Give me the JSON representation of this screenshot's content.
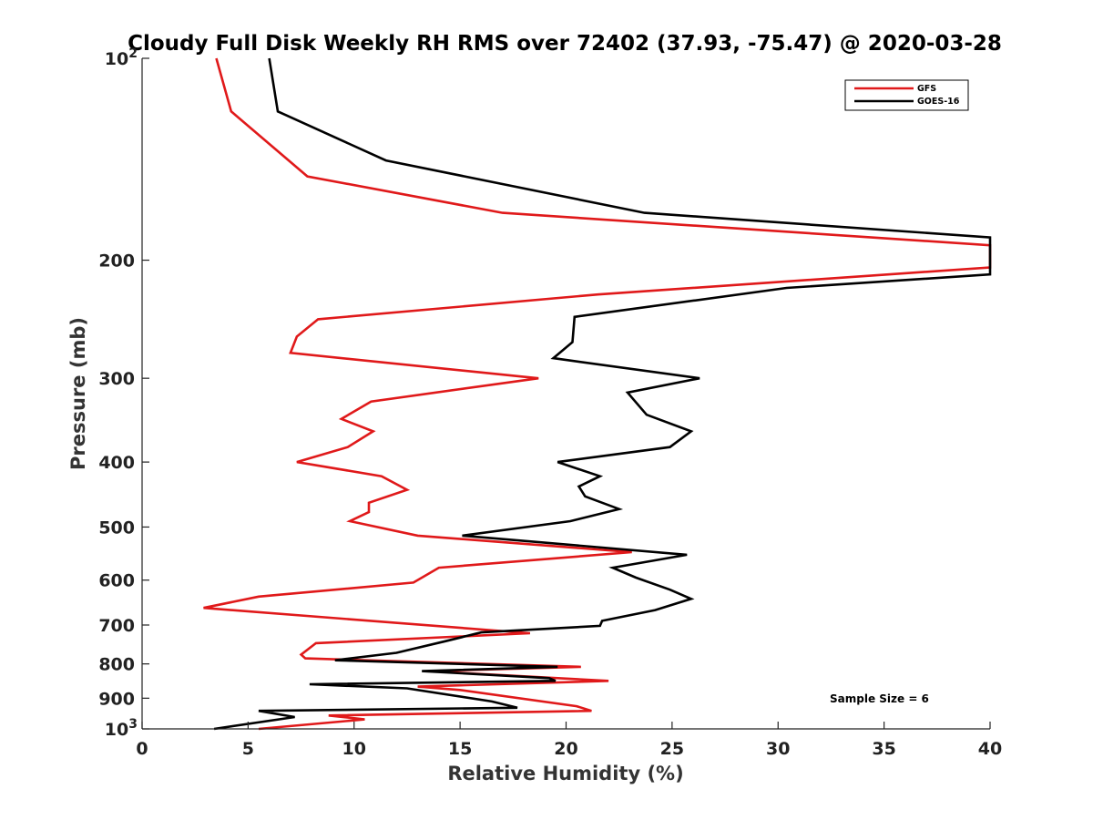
{
  "chart_data": {
    "type": "line",
    "title": "Cloudy Full Disk Weekly RH RMS over 72402 (37.93, -75.47) @ 2020-03-28",
    "xlabel": "Relative Humidity (%)",
    "ylabel": "Pressure (mb)",
    "xlim": [
      0,
      40
    ],
    "ylim": [
      100,
      1000
    ],
    "y_scale": "log",
    "y_reversed": true,
    "grid": false,
    "legend_position": "top-right",
    "x_ticks": [
      "0",
      "5",
      "10",
      "15",
      "20",
      "25",
      "30",
      "35",
      "40"
    ],
    "y_ticks": [
      {
        "value": 100,
        "base": "10",
        "exp": "2"
      },
      {
        "value": 200,
        "label": "200"
      },
      {
        "value": 300,
        "label": "300"
      },
      {
        "value": 400,
        "label": "400"
      },
      {
        "value": 500,
        "label": "500"
      },
      {
        "value": 600,
        "label": "600"
      },
      {
        "value": 700,
        "label": "700"
      },
      {
        "value": 800,
        "label": "800"
      },
      {
        "value": 900,
        "label": "900"
      },
      {
        "value": 1000,
        "base": "10",
        "exp": "3"
      }
    ],
    "annotation": "Sample Size = 6",
    "series": [
      {
        "name": "GFS",
        "color": "#e0191a",
        "points": [
          [
            3.5,
            100
          ],
          [
            4.2,
            120
          ],
          [
            7.8,
            150
          ],
          [
            17,
            170
          ],
          [
            40,
            190
          ],
          [
            40,
            205
          ],
          [
            21.5,
            225
          ],
          [
            8.3,
            245
          ],
          [
            7.3,
            260
          ],
          [
            7.0,
            275
          ],
          [
            18.7,
            300
          ],
          [
            10.8,
            325
          ],
          [
            9.4,
            345
          ],
          [
            10.9,
            360
          ],
          [
            9.7,
            380
          ],
          [
            7.3,
            400
          ],
          [
            11.3,
            420
          ],
          [
            12.5,
            440
          ],
          [
            10.7,
            460
          ],
          [
            10.7,
            475
          ],
          [
            9.8,
            490
          ],
          [
            13,
            515
          ],
          [
            23.1,
            545
          ],
          [
            14,
            575
          ],
          [
            12.8,
            605
          ],
          [
            5.5,
            635
          ],
          [
            2.9,
            660
          ],
          [
            18.3,
            720
          ],
          [
            8.2,
            745
          ],
          [
            7.5,
            775
          ],
          [
            7.7,
            785
          ],
          [
            20.7,
            808
          ],
          [
            13.5,
            820
          ],
          [
            22.0,
            848
          ],
          [
            13.0,
            865
          ],
          [
            15.0,
            875
          ],
          [
            20.5,
            925
          ],
          [
            21.2,
            940
          ],
          [
            8.8,
            955
          ],
          [
            10.5,
            968
          ],
          [
            5.5,
            1000
          ]
        ]
      },
      {
        "name": "GOES-16",
        "color": "#000000",
        "points": [
          [
            6.0,
            100
          ],
          [
            6.4,
            120
          ],
          [
            11.5,
            142
          ],
          [
            23.7,
            170
          ],
          [
            40,
            185
          ],
          [
            40,
            210
          ],
          [
            30.4,
            220
          ],
          [
            20.4,
            243
          ],
          [
            20.3,
            265
          ],
          [
            19.4,
            280
          ],
          [
            26.3,
            300
          ],
          [
            22.9,
            315
          ],
          [
            23.8,
            340
          ],
          [
            25.9,
            360
          ],
          [
            24.9,
            380
          ],
          [
            19.6,
            400
          ],
          [
            21.6,
            420
          ],
          [
            20.6,
            435
          ],
          [
            20.9,
            450
          ],
          [
            22.5,
            470
          ],
          [
            20.2,
            490
          ],
          [
            15.1,
            515
          ],
          [
            25.7,
            550
          ],
          [
            22.2,
            575
          ],
          [
            23.3,
            595
          ],
          [
            24.9,
            620
          ],
          [
            25.9,
            640
          ],
          [
            24.2,
            665
          ],
          [
            21.7,
            690
          ],
          [
            21.6,
            702
          ],
          [
            16,
            718
          ],
          [
            14.3,
            740
          ],
          [
            12,
            770
          ],
          [
            9.1,
            790
          ],
          [
            19.6,
            808
          ],
          [
            13.2,
            820
          ],
          [
            19.2,
            840
          ],
          [
            19.5,
            848
          ],
          [
            7.9,
            858
          ],
          [
            12.5,
            870
          ],
          [
            16.5,
            910
          ],
          [
            17.7,
            930
          ],
          [
            5.5,
            940
          ],
          [
            7.2,
            960
          ],
          [
            3.4,
            1000
          ]
        ]
      }
    ]
  }
}
